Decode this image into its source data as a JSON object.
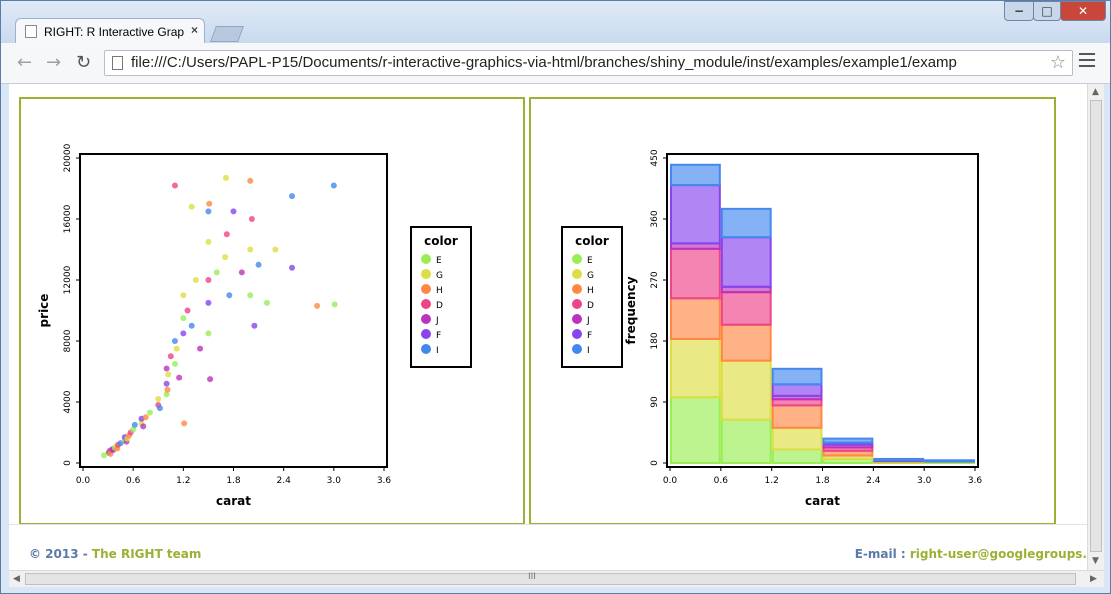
{
  "browser": {
    "tab_title": "RIGHT: R Interactive Grapl",
    "tab_close": "×",
    "url": "file:///C:/Users/PAPL-P15/Documents/r-interactive-graphics-via-html/branches/shiny_module/inst/examples/example1/examp",
    "star": "☆",
    "back": "←",
    "forward": "→",
    "reload": "↻",
    "min": "−",
    "max": "□",
    "close": "✕",
    "scroll_grip": "III"
  },
  "footer": {
    "copyright": "© 2013 - ",
    "team": "The RIGHT team",
    "email_label": "E-mail : ",
    "email": "right-user@googlegroups."
  },
  "colors": {
    "panel_border": "#99b233",
    "E": "#99ee55",
    "G": "#dddd44",
    "H": "#ff8844",
    "D": "#ee4488",
    "J": "#bb33bb",
    "F": "#8844ee",
    "I": "#4488ee"
  },
  "chart_data": [
    {
      "type": "scatter",
      "title": "",
      "xlabel": "carat",
      "ylabel": "price",
      "xlim": [
        0.0,
        3.6
      ],
      "ylim": [
        0,
        20000
      ],
      "xticks": [
        "0.0",
        "0.6",
        "1.2",
        "1.8",
        "2.4",
        "3.0",
        "3.6"
      ],
      "yticks": [
        "0",
        "4000",
        "8000",
        "12000",
        "16000",
        "20000"
      ],
      "legend": {
        "title": "color",
        "entries": [
          "E",
          "G",
          "H",
          "D",
          "J",
          "F",
          "I"
        ],
        "position": "right"
      },
      "points": [
        [
          0.25,
          500,
          "E"
        ],
        [
          0.3,
          650,
          "G"
        ],
        [
          0.31,
          700,
          "I"
        ],
        [
          0.32,
          800,
          "D"
        ],
        [
          0.33,
          600,
          "H"
        ],
        [
          0.35,
          900,
          "F"
        ],
        [
          0.36,
          850,
          "J"
        ],
        [
          0.38,
          1000,
          "E"
        ],
        [
          0.4,
          1100,
          "G"
        ],
        [
          0.41,
          950,
          "H"
        ],
        [
          0.42,
          1200,
          "D"
        ],
        [
          0.45,
          1300,
          "I"
        ],
        [
          0.5,
          1500,
          "E"
        ],
        [
          0.5,
          1700,
          "F"
        ],
        [
          0.52,
          1400,
          "J"
        ],
        [
          0.53,
          1600,
          "G"
        ],
        [
          0.55,
          1800,
          "H"
        ],
        [
          0.57,
          2000,
          "D"
        ],
        [
          0.6,
          2200,
          "E"
        ],
        [
          0.62,
          2500,
          "I"
        ],
        [
          0.7,
          2600,
          "G"
        ],
        [
          0.7,
          2900,
          "F"
        ],
        [
          0.72,
          2400,
          "J"
        ],
        [
          0.75,
          3000,
          "H"
        ],
        [
          0.8,
          3300,
          "E"
        ],
        [
          0.9,
          3800,
          "D"
        ],
        [
          0.9,
          4200,
          "G"
        ],
        [
          0.92,
          3600,
          "I"
        ],
        [
          1.0,
          4500,
          "E"
        ],
        [
          1.0,
          5200,
          "F"
        ],
        [
          1.0,
          6200,
          "J"
        ],
        [
          1.01,
          4800,
          "H"
        ],
        [
          1.02,
          5800,
          "G"
        ],
        [
          1.05,
          7000,
          "D"
        ],
        [
          1.1,
          6500,
          "E"
        ],
        [
          1.1,
          8000,
          "I"
        ],
        [
          1.12,
          7500,
          "G"
        ],
        [
          1.15,
          5600,
          "J"
        ],
        [
          1.2,
          8500,
          "F"
        ],
        [
          1.2,
          9500,
          "E"
        ],
        [
          1.2,
          11000,
          "G"
        ],
        [
          1.21,
          2600,
          "H"
        ],
        [
          1.25,
          10000,
          "D"
        ],
        [
          1.3,
          9000,
          "I"
        ],
        [
          1.35,
          12000,
          "G"
        ],
        [
          1.4,
          7500,
          "J"
        ],
        [
          1.5,
          8500,
          "E"
        ],
        [
          1.5,
          10500,
          "F"
        ],
        [
          1.5,
          12000,
          "D"
        ],
        [
          1.5,
          14500,
          "G"
        ],
        [
          1.5,
          16500,
          "I"
        ],
        [
          1.51,
          17000,
          "H"
        ],
        [
          1.52,
          5500,
          "J"
        ],
        [
          1.6,
          12500,
          "E"
        ],
        [
          1.7,
          13500,
          "G"
        ],
        [
          1.72,
          15000,
          "D"
        ],
        [
          1.75,
          11000,
          "I"
        ],
        [
          1.8,
          16500,
          "F"
        ],
        [
          1.9,
          12500,
          "J"
        ],
        [
          2.0,
          11000,
          "E"
        ],
        [
          2.0,
          14000,
          "G"
        ],
        [
          2.0,
          18500,
          "H"
        ],
        [
          2.02,
          16000,
          "D"
        ],
        [
          2.05,
          9000,
          "F"
        ],
        [
          2.1,
          13000,
          "I"
        ],
        [
          2.2,
          10500,
          "E"
        ],
        [
          2.3,
          14000,
          "G"
        ],
        [
          2.5,
          17500,
          "I"
        ],
        [
          2.5,
          12800,
          "F"
        ],
        [
          2.8,
          10300,
          "H"
        ],
        [
          3.01,
          10400,
          "E"
        ],
        [
          3.0,
          18200,
          "I"
        ],
        [
          1.1,
          18200,
          "D"
        ],
        [
          1.3,
          16800,
          "G"
        ],
        [
          1.71,
          18700,
          "G"
        ]
      ]
    },
    {
      "type": "bar",
      "title": "",
      "xlabel": "carat",
      "ylabel": "frequency",
      "xlim": [
        0.0,
        3.6
      ],
      "ylim": [
        0,
        450
      ],
      "xticks": [
        "0.0",
        "0.6",
        "1.2",
        "1.8",
        "2.4",
        "3.0",
        "3.6"
      ],
      "yticks": [
        "0",
        "90",
        "180",
        "270",
        "360",
        "450"
      ],
      "bins": [
        "0.0-0.6",
        "0.6-1.2",
        "1.2-1.8",
        "1.8-2.4",
        "2.4-3.0",
        "3.0-3.6"
      ],
      "stacked": true,
      "legend": {
        "title": "color",
        "entries": [
          "E",
          "G",
          "H",
          "D",
          "J",
          "F",
          "I"
        ],
        "position": "left"
      },
      "series": [
        {
          "name": "E",
          "values": [
            97,
            64,
            20,
            6,
            1,
            1
          ]
        },
        {
          "name": "G",
          "values": [
            86,
            87,
            32,
            5,
            1,
            1
          ]
        },
        {
          "name": "H",
          "values": [
            60,
            53,
            33,
            7,
            1,
            0
          ]
        },
        {
          "name": "D",
          "values": [
            73,
            48,
            9,
            5,
            0,
            0
          ]
        },
        {
          "name": "J",
          "values": [
            8,
            8,
            5,
            4,
            0,
            0
          ]
        },
        {
          "name": "F",
          "values": [
            86,
            73,
            17,
            3,
            1,
            0
          ]
        },
        {
          "name": "I",
          "values": [
            30,
            42,
            23,
            6,
            2,
            2
          ]
        }
      ]
    }
  ]
}
